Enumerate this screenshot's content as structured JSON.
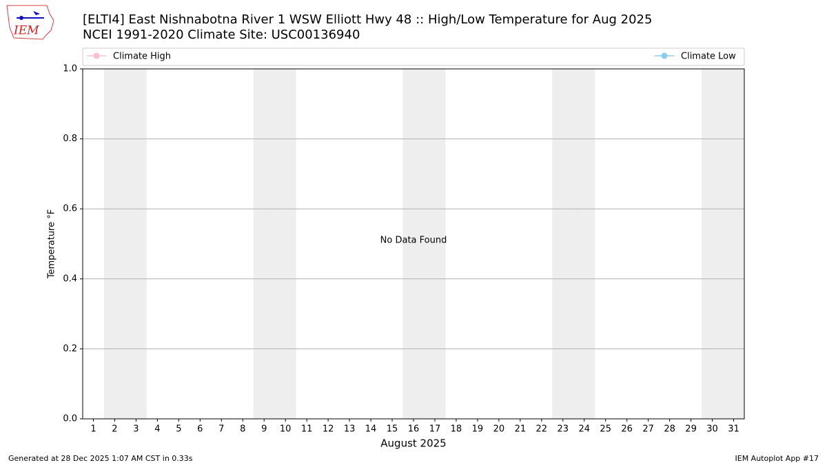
{
  "chart_data": {
    "type": "line",
    "title": "[ELTI4] East Nishnabotna River 1 WSW Elliott Hwy 48 :: High/Low Temperature for Aug 2025",
    "subtitle": "NCEI 1991-2020 Climate Site: USC00136940",
    "logo": "IEM",
    "x_label": "August 2025",
    "y_label": "Temperature °F",
    "annotation": "No Data Found",
    "footer_left": "Generated at 28 Dec 2025 1:07 AM CST in 0.33s",
    "footer_right": "IEM Autoplot App #17",
    "x": [],
    "series": [
      {
        "name": "Climate High",
        "color": "#ffc0cb",
        "values": []
      },
      {
        "name": "Climate Low",
        "color": "#87ceeb",
        "values": []
      }
    ],
    "xlim": [
      0.5,
      31.5
    ],
    "xticks": [
      1,
      2,
      3,
      4,
      5,
      6,
      7,
      8,
      9,
      10,
      11,
      12,
      13,
      14,
      15,
      16,
      17,
      18,
      19,
      20,
      21,
      22,
      23,
      24,
      25,
      26,
      27,
      28,
      29,
      30,
      31
    ],
    "ylim": [
      0,
      1
    ],
    "yticks": [
      {
        "value": 0,
        "label": "0.0"
      },
      {
        "value": 0.2,
        "label": "0.2"
      },
      {
        "value": 0.4,
        "label": "0.4"
      },
      {
        "value": 0.6,
        "label": "0.6"
      },
      {
        "value": 0.8,
        "label": "0.8"
      },
      {
        "value": 1,
        "label": "1.0"
      }
    ],
    "grid": true,
    "shaded_days": [
      2,
      3,
      9,
      10,
      16,
      17,
      23,
      24,
      30,
      31
    ],
    "shade_color": "#eeeeee"
  }
}
